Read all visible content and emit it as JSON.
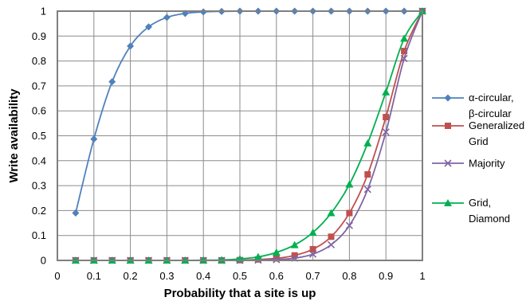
{
  "chart_data": {
    "type": "line",
    "xlabel": "Probability that a site is up",
    "ylabel": "Write availability",
    "xlim": [
      0,
      1
    ],
    "ylim": [
      0,
      1
    ],
    "grid": true,
    "legend_position": "right",
    "x_ticks": [
      "0",
      "0.1",
      "0.2",
      "0.3",
      "0.4",
      "0.5",
      "0.6",
      "0.7",
      "0.8",
      "0.9",
      "1"
    ],
    "y_ticks": [
      "0",
      "0.1",
      "0.2",
      "0.3",
      "0.4",
      "0.5",
      "0.6",
      "0.7",
      "0.8",
      "0.9",
      "1"
    ],
    "x": [
      0.05,
      0.1,
      0.15,
      0.2,
      0.25,
      0.3,
      0.35,
      0.4,
      0.45,
      0.5,
      0.55,
      0.6,
      0.65,
      0.7,
      0.75,
      0.8,
      0.85,
      0.9,
      0.95,
      1.0
    ],
    "series": [
      {
        "name_lines": [
          "α-circular,",
          "β-circular"
        ],
        "color": "#4F81BD",
        "marker": "diamond",
        "values": [
          0.19,
          0.487,
          0.717,
          0.86,
          0.937,
          0.975,
          0.991,
          0.997,
          0.999,
          1,
          1,
          1,
          1,
          1,
          1,
          1,
          1,
          1,
          1,
          1
        ]
      },
      {
        "name_lines": [
          "Generalized",
          "Grid"
        ],
        "color": "#C0504D",
        "marker": "square",
        "values": [
          0,
          0,
          0,
          0,
          0,
          0,
          0,
          0,
          0,
          0.001,
          0.004,
          0.008,
          0.02,
          0.045,
          0.095,
          0.19,
          0.345,
          0.575,
          0.84,
          1
        ]
      },
      {
        "name_lines": [
          "Majority"
        ],
        "color": "#8064A2",
        "marker": "x",
        "values": [
          0,
          0,
          0,
          0,
          0,
          0,
          0,
          0,
          0,
          0,
          0.001,
          0.003,
          0.009,
          0.025,
          0.063,
          0.14,
          0.285,
          0.515,
          0.81,
          1
        ]
      },
      {
        "name_lines": [
          "Grid,",
          "Diamond"
        ],
        "color": "#00B050",
        "marker": "triangle",
        "values": [
          0,
          0,
          0,
          0,
          0,
          0,
          0,
          0.001,
          0.002,
          0.006,
          0.014,
          0.032,
          0.062,
          0.112,
          0.19,
          0.305,
          0.47,
          0.675,
          0.89,
          1
        ]
      }
    ]
  }
}
